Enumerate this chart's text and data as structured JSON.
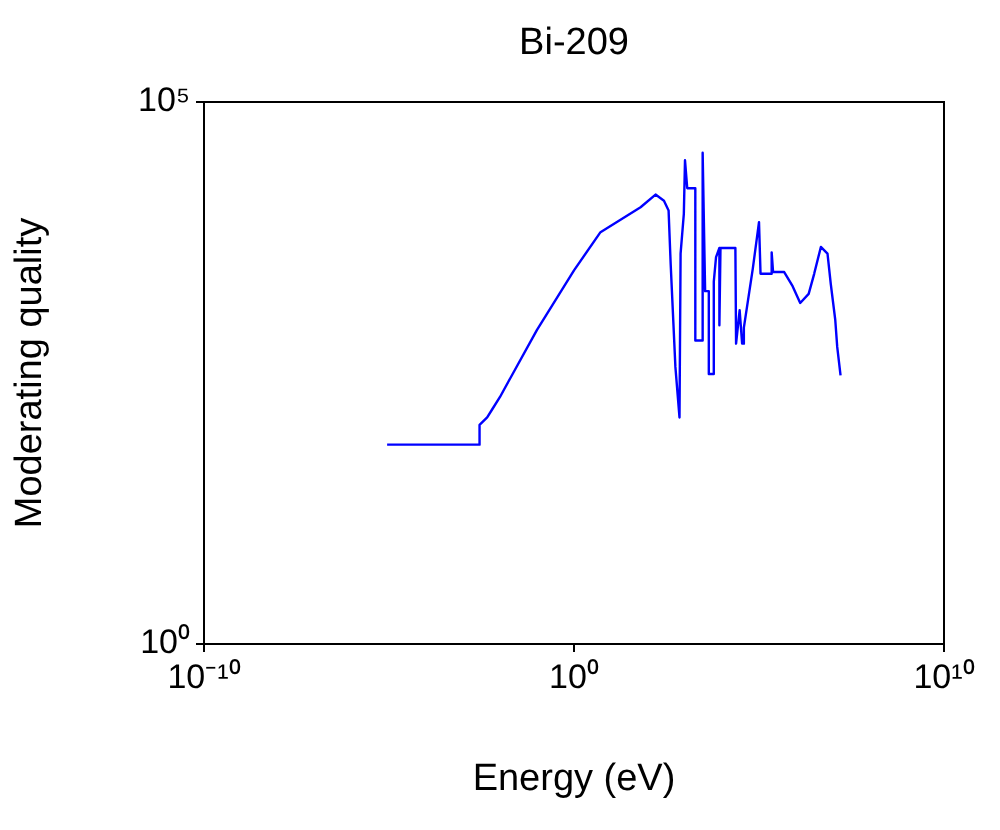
{
  "chart_data": {
    "type": "line",
    "title": "Bi-209",
    "xlabel": "Energy (eV)",
    "ylabel": "Moderating quality",
    "log": "xy",
    "grid": false,
    "legend": false,
    "marker": "none",
    "line_style": "solid",
    "xlim": [
      1e-10,
      10000000000.0
    ],
    "xticks": [
      {
        "value": 1e-10,
        "label": "10⁻¹⁰"
      },
      {
        "value": 1,
        "label": "10⁰"
      },
      {
        "value": 10000000000.0,
        "label": "10¹⁰"
      }
    ],
    "ylim": [
      1,
      100000
    ],
    "yticks": [
      {
        "value": 1,
        "label": "10⁰"
      },
      {
        "value": 100000,
        "label": "10⁵"
      }
    ],
    "series": [
      {
        "color": "#0000ff",
        "x": [
          8.9e-06,
          0.0028,
          0.0028,
          0.0045,
          0.0063,
          0.01,
          0.013,
          0.1,
          1,
          5.2,
          63,
          160,
          270,
          360,
          410,
          550,
          710,
          760,
          930,
          1000,
          1150,
          1900,
          1900,
          2900,
          3000,
          3500,
          4400,
          4400,
          5600,
          6000,
          6900,
          8500,
          8500,
          9100,
          23000,
          24000,
          30000,
          35000,
          39000,
          68000,
          100000,
          110000,
          210000,
          220000,
          240000,
          480000,
          810000,
          1300000,
          2200000,
          3100000,
          4700000,
          7100000,
          8700000,
          11500000,
          13000000,
          16000000
        ],
        "values": [
          69,
          69,
          105,
          123,
          148,
          190,
          224,
          790,
          2800,
          6300,
          10700,
          14000,
          12300,
          10000,
          3200,
          360,
          123,
          4000,
          9300,
          29000,
          16000,
          16000,
          630,
          630,
          34000,
          1800,
          1800,
          310,
          310,
          2200,
          3700,
          4500,
          870,
          4500,
          4500,
          590,
          1200,
          590,
          830,
          2900,
          7800,
          2600,
          2600,
          4100,
          2700,
          2700,
          2000,
          1400,
          1700,
          2600,
          4600,
          4000,
          2100,
          980,
          550,
          300
        ]
      }
    ]
  }
}
